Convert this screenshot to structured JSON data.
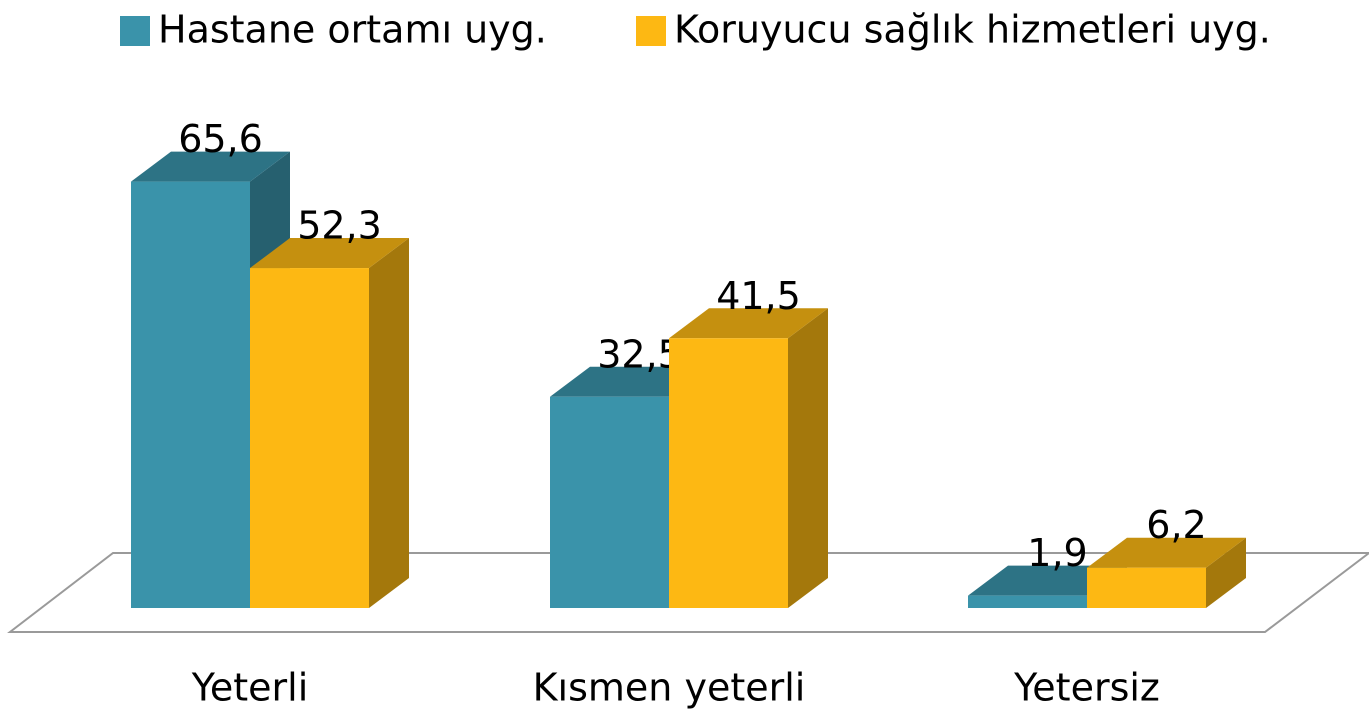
{
  "chart_data": {
    "type": "bar3d",
    "categories": [
      "Yeterli",
      "Kısmen yeterli",
      "Yetersiz"
    ],
    "series": [
      {
        "name": "Hastane ortamı uyg.",
        "color": "#3a93aa",
        "values": [
          65.6,
          32.5,
          1.9
        ],
        "value_labels": [
          "65,6",
          "32,5",
          "1,9"
        ]
      },
      {
        "name": "Koruyucu sağlık hizmetleri uyg.",
        "color": "#fdb813",
        "values": [
          52.3,
          41.5,
          6.2
        ],
        "value_labels": [
          "52,3",
          "41,5",
          "6,2"
        ]
      }
    ],
    "legend": "top"
  }
}
